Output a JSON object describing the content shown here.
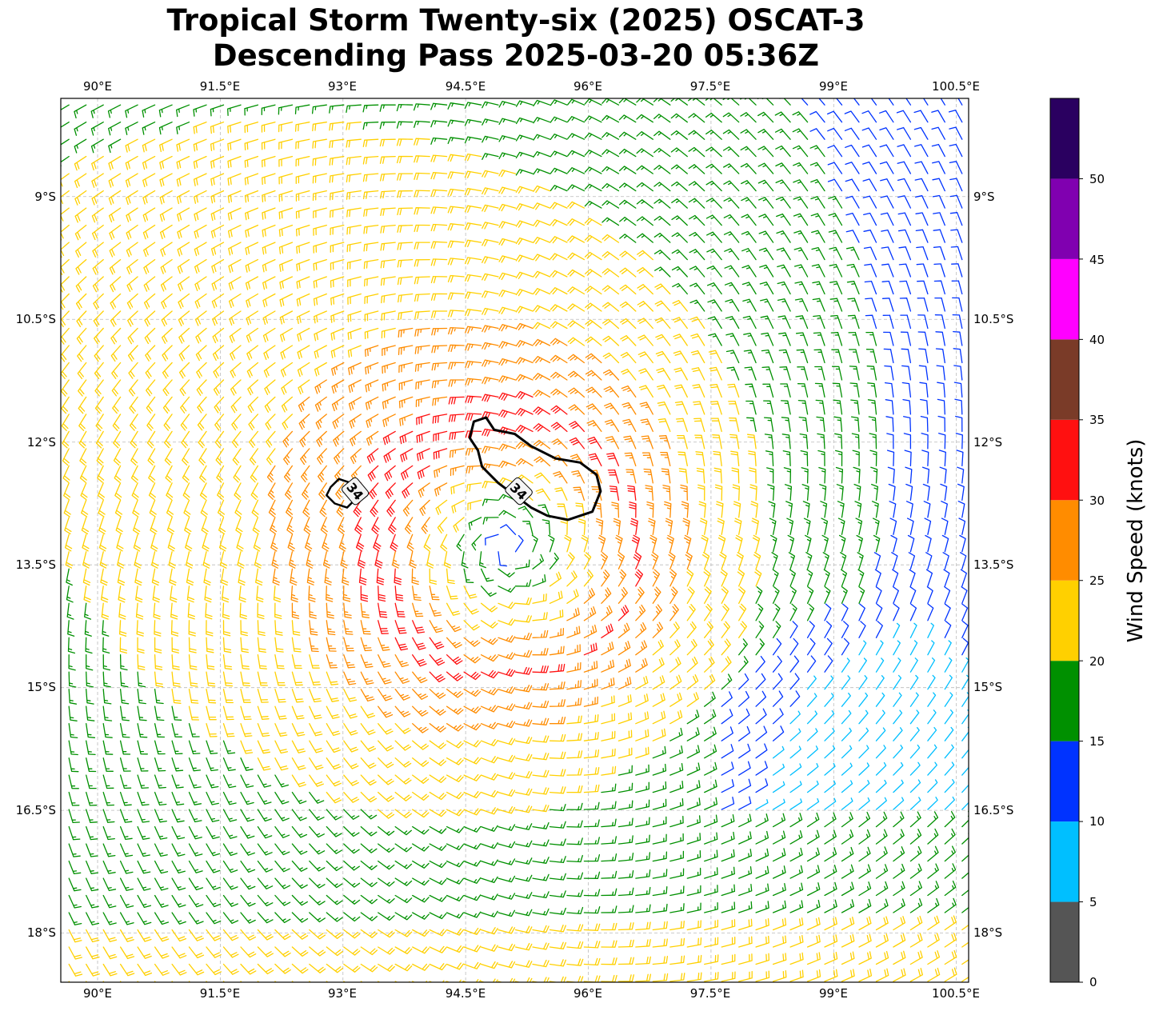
{
  "title": {
    "line1": "Tropical Storm Twenty-six (2025) OSCAT-3",
    "line2": "Descending Pass 2025-03-20 05:36Z"
  },
  "map": {
    "lon_ticks": [
      "90°E",
      "91.5°E",
      "93°E",
      "94.5°E",
      "96°E",
      "97.5°E",
      "99°E",
      "100.5°E"
    ],
    "lat_ticks": [
      "9°S",
      "10.5°S",
      "12°S",
      "13.5°S",
      "15°S",
      "16.5°S",
      "18°S"
    ],
    "lon_values": [
      90,
      91.5,
      93,
      94.5,
      96,
      97.5,
      99,
      100.5
    ],
    "lat_values": [
      -9,
      -10.5,
      -12,
      -13.5,
      -15,
      -16.5,
      -18
    ],
    "extent": {
      "lon_min": 89.55,
      "lon_max": 100.65,
      "lat_min": -18.6,
      "lat_max": -7.8
    },
    "storm_center": {
      "lon": 95.0,
      "lat": -13.3
    },
    "contour_label": "34",
    "grid": true
  },
  "colorbar": {
    "label": "Wind Speed (knots)",
    "ticks": [
      "0",
      "5",
      "10",
      "15",
      "20",
      "25",
      "30",
      "35",
      "40",
      "45",
      "50"
    ],
    "bins": [
      {
        "min": 0,
        "max": 5,
        "color": "#555555"
      },
      {
        "min": 5,
        "max": 10,
        "color": "#00bfff"
      },
      {
        "min": 10,
        "max": 15,
        "color": "#0033ff"
      },
      {
        "min": 15,
        "max": 20,
        "color": "#009000"
      },
      {
        "min": 20,
        "max": 25,
        "color": "#ffd000"
      },
      {
        "min": 25,
        "max": 30,
        "color": "#ff8c00"
      },
      {
        "min": 30,
        "max": 35,
        "color": "#ff1010"
      },
      {
        "min": 35,
        "max": 40,
        "color": "#7a3b28"
      },
      {
        "min": 40,
        "max": 45,
        "color": "#ff00ff"
      },
      {
        "min": 45,
        "max": 50,
        "color": "#8000b0"
      },
      {
        "min": 50,
        "max": 55,
        "color": "#2a0060"
      }
    ]
  }
}
